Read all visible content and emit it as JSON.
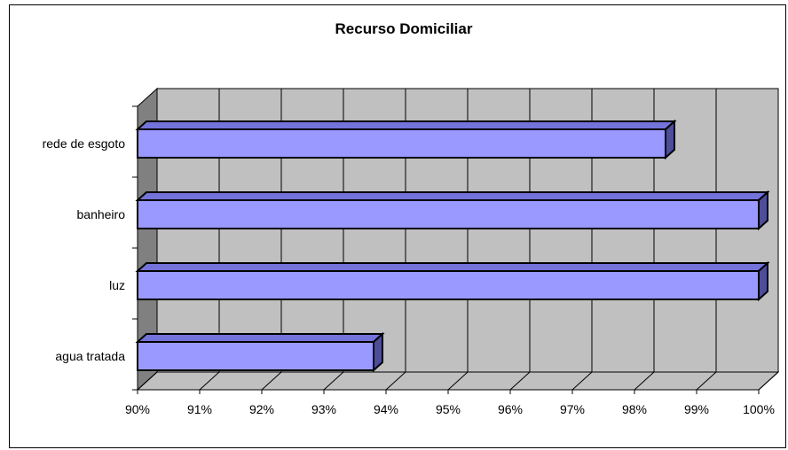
{
  "chart_data": {
    "type": "bar",
    "orientation": "horizontal",
    "style": "3d",
    "title": "Recurso Domiciliar",
    "xlabel": "",
    "ylabel": "",
    "categories": [
      "rede de esgoto",
      "banheiro",
      "luz",
      "agua tratada"
    ],
    "values": [
      98.5,
      100,
      100,
      93.8
    ],
    "value_unit": "%",
    "xlim": [
      90,
      100
    ],
    "x_ticks": [
      "90%",
      "91%",
      "92%",
      "93%",
      "94%",
      "95%",
      "96%",
      "97%",
      "98%",
      "99%",
      "100%"
    ],
    "grid": true,
    "legend": "none",
    "colors": {
      "bar_front": "#9999ff",
      "bar_top": "#7373d9",
      "bar_side": "#4d4d99",
      "wall": "#c0c0c0",
      "side_wall": "#808080",
      "floor": "#c0c0c0",
      "outline": "#000000"
    }
  }
}
